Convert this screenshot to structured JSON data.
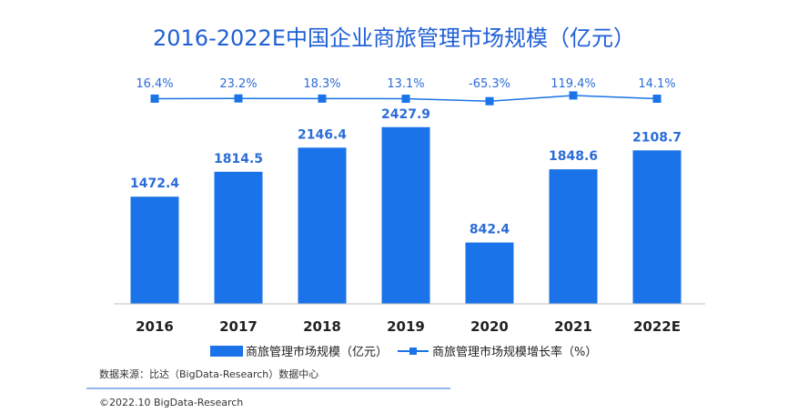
{
  "chart_data": {
    "type": "bar",
    "title": "2016-2022E中国企业商旅管理市场规模（亿元）",
    "categories": [
      "2016",
      "2017",
      "2018",
      "2019",
      "2020",
      "2021",
      "2022E"
    ],
    "series": [
      {
        "name": "商旅管理市场规模（亿元）",
        "type": "bar",
        "values": [
          1472.4,
          1814.5,
          2146.4,
          2427.9,
          842.4,
          1848.6,
          2108.7
        ],
        "labels": [
          "1472.4",
          "1814.5",
          "2146.4",
          "2427.9",
          "842.4",
          "1848.6",
          "2108.7"
        ]
      },
      {
        "name": "商旅管理市场规模增长率（%）",
        "type": "line",
        "values": [
          16.4,
          23.2,
          18.3,
          13.1,
          -65.3,
          119.4,
          14.1
        ],
        "labels": [
          "16.4%",
          "23.2%",
          "18.3%",
          "13.1%",
          "-65.3%",
          "119.4%",
          "14.1%"
        ]
      }
    ],
    "ylim": [
      0,
      2700
    ],
    "ylim_rate": [
      -500,
      500
    ],
    "grid": false,
    "legend_position": "bottom",
    "colors": {
      "bar": "#1a73e8",
      "line": "#1a73e8",
      "title": "#1f5fd6"
    }
  },
  "source": "数据来源：比达（BigData-Research）数据中心",
  "copyright": "©2022.10 BigData-Research"
}
